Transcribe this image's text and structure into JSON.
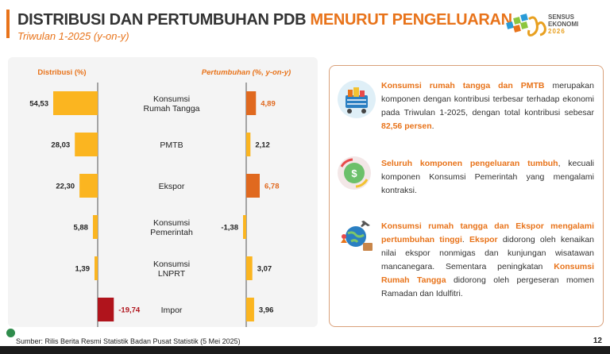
{
  "header": {
    "title_main": "DISTRIBUSI DAN PERTUMBUHAN PDB ",
    "title_highlight": "MENURUT PENGELUARAN",
    "subtitle": "Triwulan 1-2025 (y-on-y)",
    "logo_line1": "SENSUS",
    "logo_line2": "EKONOMI",
    "logo_year": "2026"
  },
  "chart_data": {
    "type": "bar",
    "left_header": "Distribusi (%)",
    "right_header": "Pertumbuhan (%, y-on-y)",
    "categories": [
      [
        "Konsumsi",
        "Rumah Tangga"
      ],
      [
        "PMTB"
      ],
      [
        "Ekspor"
      ],
      [
        "Konsumsi",
        "Pemerintah"
      ],
      [
        "Konsumsi",
        "LNPRT"
      ],
      [
        "Impor"
      ]
    ],
    "series": [
      {
        "name": "Distribusi (%)",
        "values": [
          54.53,
          28.03,
          22.3,
          5.88,
          1.39,
          -19.74
        ],
        "labels": [
          "54,53",
          "28,03",
          "22,30",
          "5,88",
          "1,39",
          "-19,74"
        ]
      },
      {
        "name": "Pertumbuhan (%, y-on-y)",
        "values": [
          4.89,
          2.12,
          6.78,
          -1.38,
          3.07,
          3.96
        ],
        "labels": [
          "4,89",
          "2,12",
          "6,78",
          "-1,38",
          "3,07",
          "3,96"
        ]
      }
    ],
    "colors": {
      "positive": "#fbb520",
      "highlight": "#e0691f",
      "negative": "#b0141c",
      "axis": "#555555"
    },
    "highlighted_growth": [
      0,
      2
    ]
  },
  "info": {
    "p1_h": "Konsumsi rumah tangga dan PMTB",
    "p1_t1": " merupakan komponen dengan kontribusi terbesar terhadap ekonomi pada Triwulan 1-2025, dengan total kontribusi sebesar ",
    "p1_h2": "82,56 persen",
    "p1_t2": ".",
    "p2_h": "Seluruh komponen pengeluaran tumbuh",
    "p2_t": ", kecuali komponen Konsumsi Pemerintah yang mengalami kontraksi.",
    "p3_h": "Konsumsi rumah tangga dan Ekspor mengalami pertumbuhan tinggi",
    "p3_t1": ". ",
    "p3_h2": "Ekspor",
    "p3_t2": " didorong oleh kenaikan nilai ekspor nonmigas dan kunjungan wisatawan mancanegara. Sementara peningkatan ",
    "p3_h3": "Konsumsi Rumah Tangga",
    "p3_t3": " didorong oleh pergeseran momen Ramadan dan Idulfitri."
  },
  "footer": {
    "source": "Sumber: Rilis Berita Resmi Statistik Badan Pusat Statistik (5 Mei 2025)",
    "page": "12"
  },
  "icons": [
    "shopping-cart-icon",
    "money-growth-icon",
    "travel-export-icon",
    "logo-icon"
  ]
}
